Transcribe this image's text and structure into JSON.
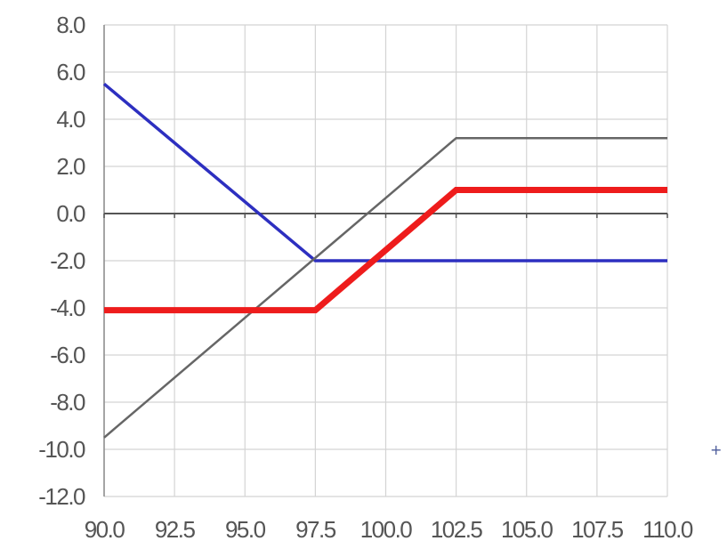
{
  "chart_data": {
    "type": "line",
    "title": "",
    "xlabel": "",
    "ylabel": "",
    "xlim": [
      90.0,
      110.0
    ],
    "ylim": [
      -12.0,
      8.0
    ],
    "x_ticks": [
      90.0,
      92.5,
      95.0,
      97.5,
      100.0,
      102.5,
      105.0,
      107.5,
      110.0
    ],
    "x_tick_labels": [
      "90.0",
      "92.5",
      "95.0",
      "97.5",
      "100.0",
      "102.5",
      "105.0",
      "107.5",
      "110.0"
    ],
    "y_ticks": [
      8.0,
      6.0,
      4.0,
      2.0,
      0.0,
      -2.0,
      -4.0,
      -6.0,
      -8.0,
      -10.0,
      -12.0
    ],
    "y_tick_labels": [
      "8.0",
      "6.0",
      "4.0",
      "2.0",
      "0.0",
      "-2.0",
      "-4.0",
      "-6.0",
      "-8.0",
      "-10.0",
      "-12.0"
    ],
    "grid": true,
    "series": [
      {
        "color": "#2d2fc0",
        "line": "normal",
        "points": [
          [
            90.0,
            5.5
          ],
          [
            97.5,
            -2.0
          ],
          [
            110.0,
            -2.0
          ]
        ]
      },
      {
        "color": "#666666",
        "line": "thin",
        "points": [
          [
            90.0,
            -9.5
          ],
          [
            102.5,
            3.2
          ],
          [
            110.0,
            3.2
          ]
        ]
      },
      {
        "color": "#ee1c1c",
        "line": "thick",
        "points": [
          [
            90.0,
            -4.1
          ],
          [
            97.5,
            -4.1
          ],
          [
            102.5,
            1.0
          ],
          [
            110.0,
            1.0
          ]
        ]
      }
    ]
  },
  "annotation": {
    "corner_mark": "+"
  }
}
